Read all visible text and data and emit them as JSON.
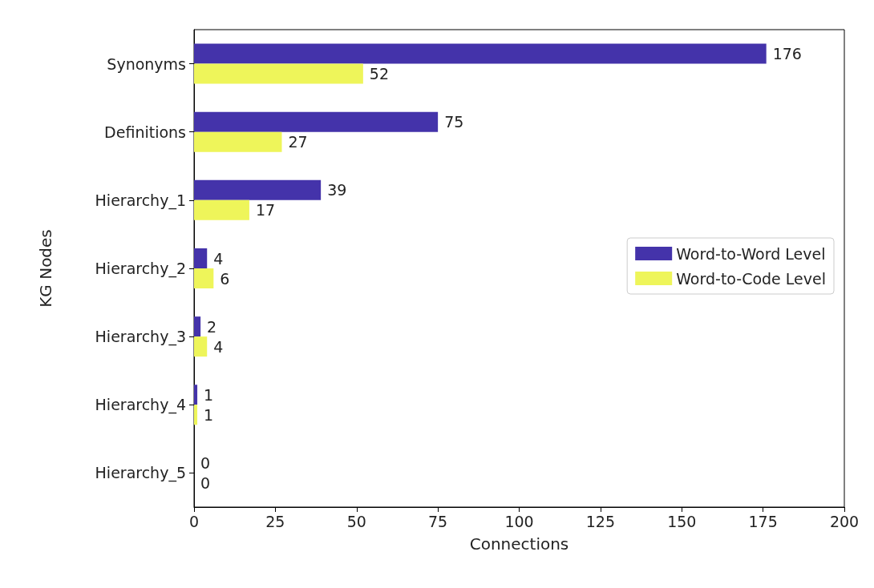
{
  "chart_data": {
    "type": "bar",
    "orientation": "horizontal",
    "xlabel": "Connections",
    "ylabel": "KG Nodes",
    "categories": [
      "Synonyms",
      "Definitions",
      "Hierarchy_1",
      "Hierarchy_2",
      "Hierarchy_3",
      "Hierarchy_4",
      "Hierarchy_5"
    ],
    "series": [
      {
        "name": "Word-to-Word Level",
        "color": "#4433aa",
        "values": [
          176,
          75,
          39,
          4,
          2,
          1,
          0
        ]
      },
      {
        "name": "Word-to-Code Level",
        "color": "#eef55a",
        "values": [
          52,
          27,
          17,
          6,
          4,
          1,
          0
        ]
      }
    ],
    "xlim": [
      0,
      200
    ],
    "xticks": [
      0,
      25,
      50,
      75,
      100,
      125,
      150,
      175,
      200
    ],
    "data_labels": true,
    "legend": "right",
    "grid": false
  }
}
